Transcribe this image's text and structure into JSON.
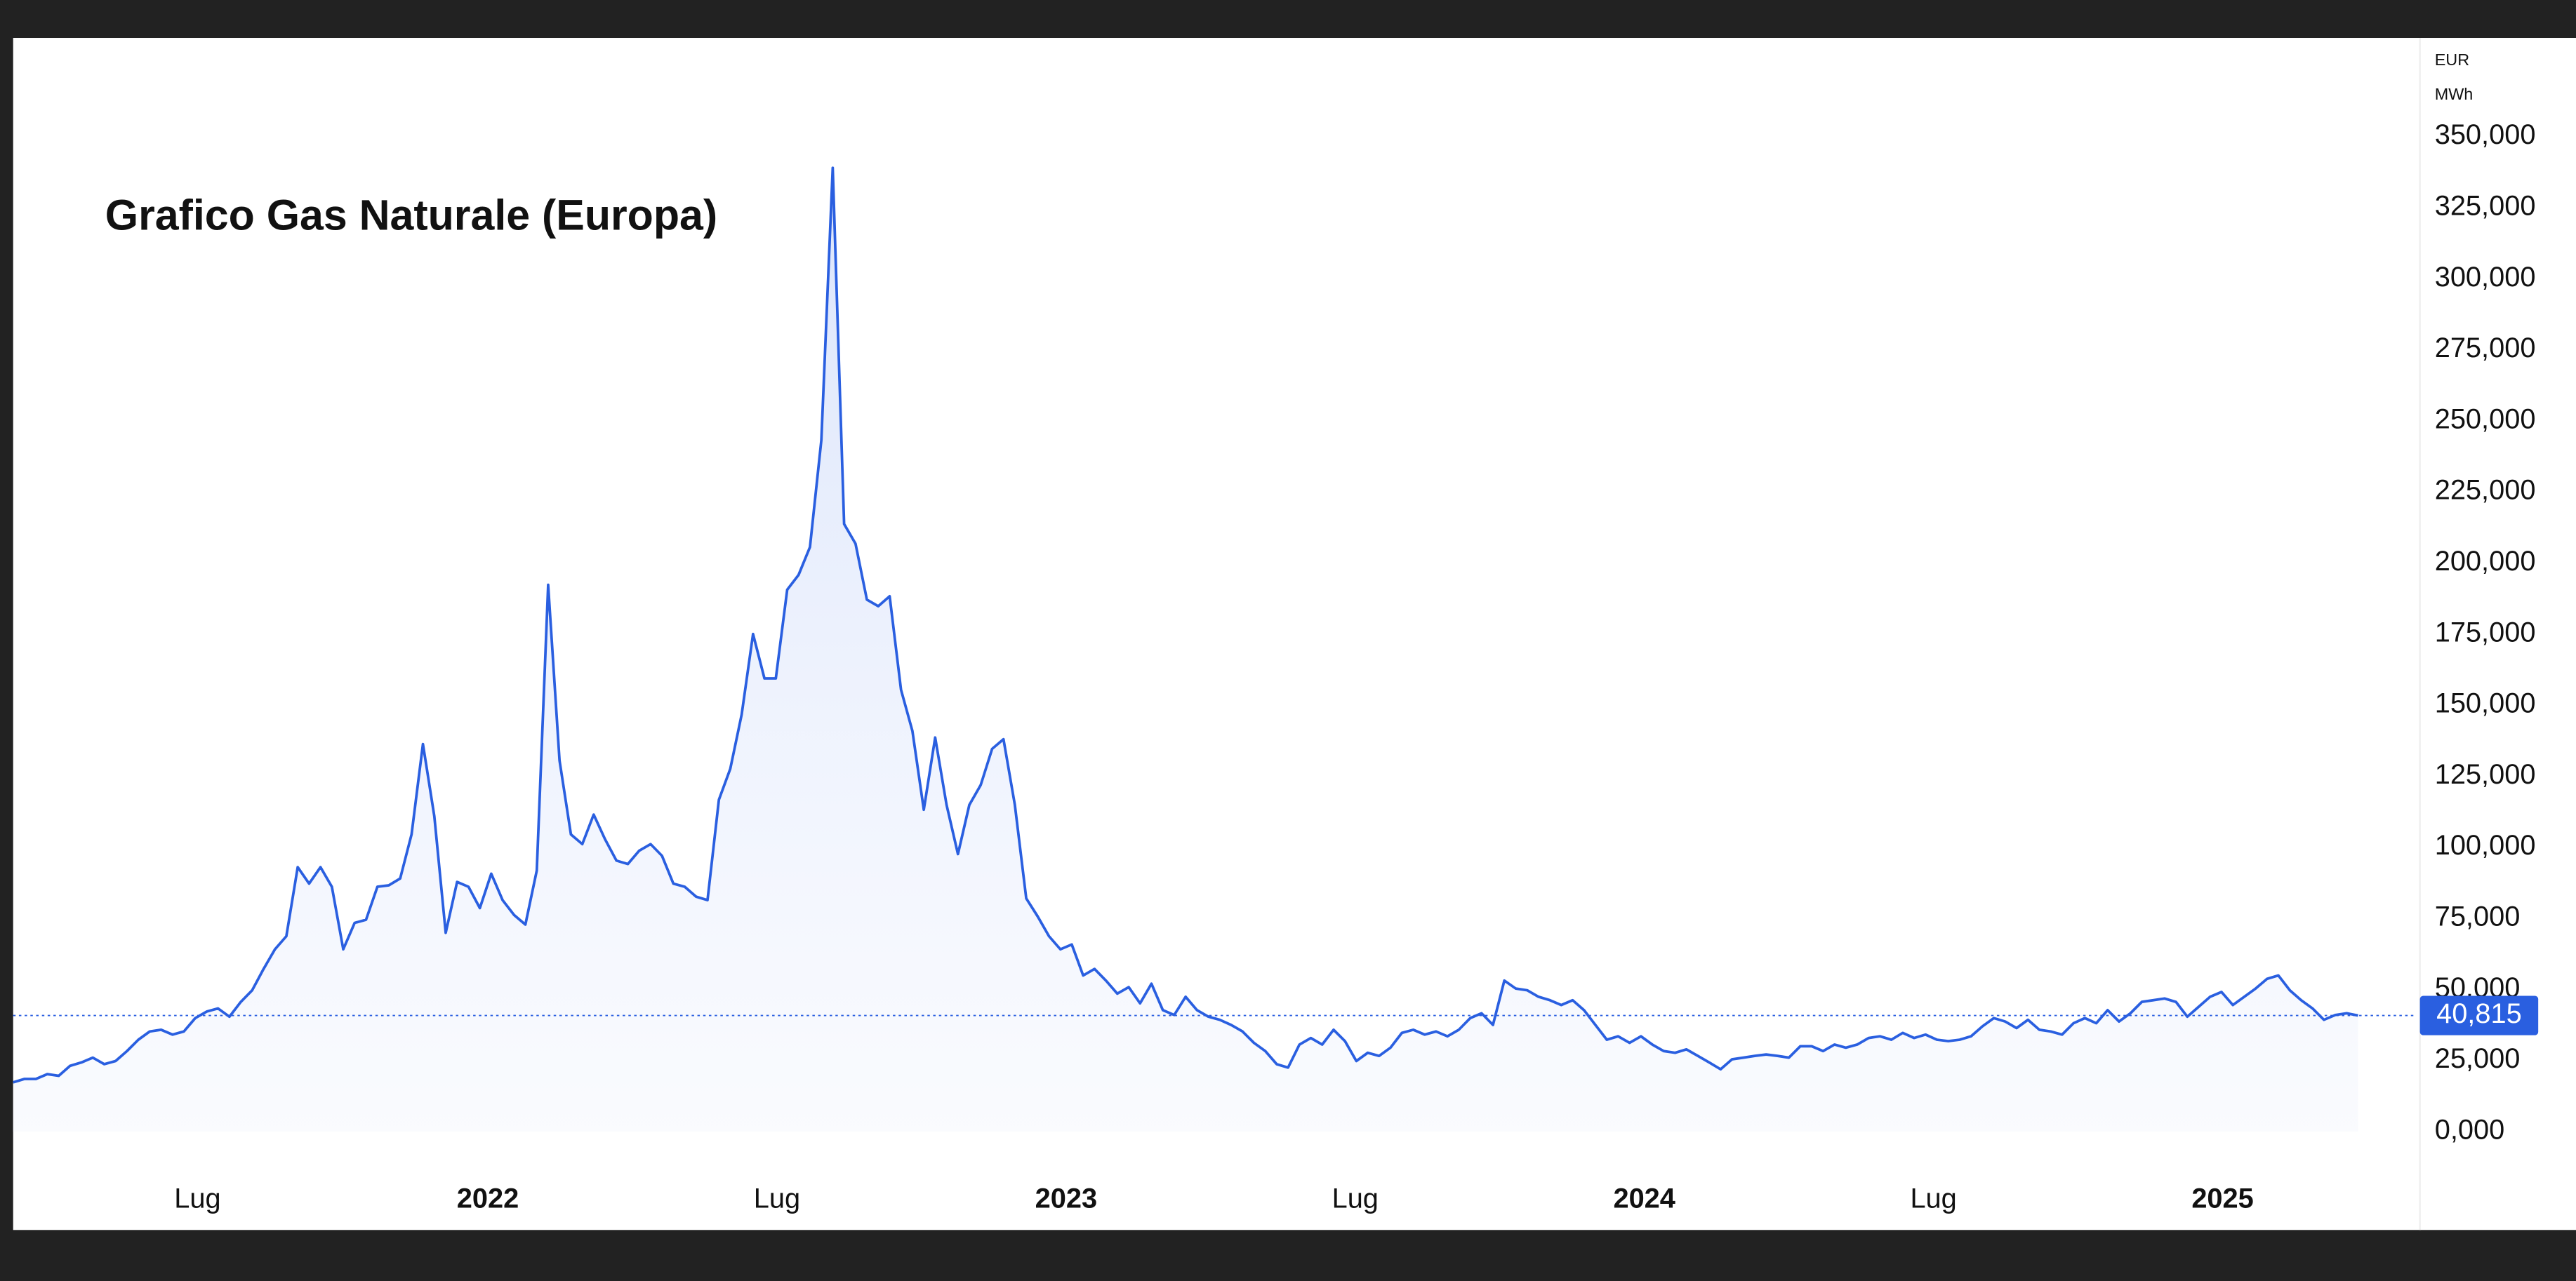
{
  "chart_data": {
    "type": "line",
    "title": "Grafico Gas Naturale (Europa)",
    "unit_labels": [
      "EUR",
      "MWh"
    ],
    "series": [
      {
        "name": "Gas Naturale (Europa)",
        "color": "#2a5fe0",
        "values": [
          17.3,
          18.5,
          18.5,
          20.2,
          19.6,
          23.1,
          24.3,
          26.0,
          23.7,
          24.8,
          28.3,
          32.3,
          35.2,
          35.8,
          34.1,
          35.2,
          39.9,
          42.2,
          43.3,
          40.4,
          45.6,
          49.7,
          57.2,
          64.1,
          68.7,
          93.0,
          87.2,
          93.0,
          86.1,
          64.1,
          73.4,
          74.5,
          86.1,
          86.6,
          89.0,
          104.5,
          136.3,
          110.9,
          69.9,
          87.8,
          86.1,
          78.6,
          90.7,
          81.4,
          76.2,
          72.8,
          91.8,
          192.3,
          130.5,
          104.5,
          101.1,
          111.5,
          102.8,
          95.3,
          94.1,
          98.8,
          101.1,
          97.0,
          87.2,
          86.1,
          82.6,
          81.4,
          116.7,
          127.6,
          146.7,
          175.0,
          159.4,
          159.4,
          190.6,
          195.8,
          205.6,
          243.2,
          339.0,
          213.7,
          206.8,
          187.1,
          184.8,
          188.3,
          155.4,
          140.9,
          113.2,
          138.6,
          114.9,
          97.6,
          114.9,
          121.9,
          134.6,
          138.0,
          114.9,
          82.0,
          75.7,
          68.7,
          64.1,
          65.8,
          54.9,
          57.2,
          53.1,
          48.5,
          50.8,
          45.1,
          52.0,
          42.7,
          41.0,
          47.4,
          42.7,
          40.4,
          39.3,
          37.5,
          35.2,
          31.2,
          28.3,
          23.7,
          22.5,
          30.6,
          32.9,
          30.6,
          35.8,
          31.8,
          24.8,
          27.7,
          26.6,
          29.5,
          34.7,
          35.8,
          34.1,
          35.2,
          33.5,
          35.8,
          39.9,
          41.6,
          37.5,
          53.1,
          50.3,
          49.7,
          47.4,
          46.2,
          44.5,
          46.2,
          42.7,
          37.5,
          32.3,
          33.5,
          31.2,
          33.5,
          30.6,
          28.3,
          27.7,
          28.9,
          26.6,
          24.3,
          21.9,
          25.4,
          26.0,
          26.6,
          27.1,
          26.6,
          26.0,
          30.0,
          30.0,
          28.3,
          30.6,
          29.5,
          30.6,
          32.9,
          33.5,
          32.3,
          34.7,
          32.9,
          34.1,
          32.3,
          31.8,
          32.3,
          33.5,
          37.0,
          39.9,
          38.7,
          36.4,
          39.3,
          35.8,
          35.2,
          34.1,
          38.1,
          39.9,
          38.1,
          42.7,
          38.7,
          41.6,
          45.6,
          46.2,
          46.8,
          45.6,
          40.4,
          43.9,
          47.4,
          49.1,
          44.5,
          47.4,
          50.3,
          53.7,
          54.9,
          49.7,
          46.2,
          43.3,
          39.3,
          41.0,
          41.6,
          40.815
        ]
      }
    ],
    "last_value_label": "40,815",
    "xlim": [
      0,
      211
    ],
    "xticks": [
      {
        "value": 16.2,
        "label": "Lug"
      },
      {
        "value": 41.7,
        "label": "2022"
      },
      {
        "value": 67.1,
        "label": "Lug"
      },
      {
        "value": 92.5,
        "label": "2023"
      },
      {
        "value": 117.9,
        "label": "Lug"
      },
      {
        "value": 143.3,
        "label": "2024"
      },
      {
        "value": 168.7,
        "label": "Lug"
      },
      {
        "value": 194.1,
        "label": "2025"
      }
    ],
    "ylim": [
      -12.1,
      384.7
    ],
    "yticks": [
      {
        "value": 0,
        "label": "0,000"
      },
      {
        "value": 25,
        "label": "25,000"
      },
      {
        "value": 50,
        "label": "50,000"
      },
      {
        "value": 75,
        "label": "75,000"
      },
      {
        "value": 100,
        "label": "100,000"
      },
      {
        "value": 125,
        "label": "125,000"
      },
      {
        "value": 150,
        "label": "150,000"
      },
      {
        "value": 175,
        "label": "175,000"
      },
      {
        "value": 200,
        "label": "200,000"
      },
      {
        "value": 225,
        "label": "225,000"
      },
      {
        "value": 250,
        "label": "250,000"
      },
      {
        "value": 275,
        "label": "275,000"
      },
      {
        "value": 300,
        "label": "300,000"
      },
      {
        "value": 325,
        "label": "325,000"
      },
      {
        "value": 350,
        "label": "350,000"
      }
    ],
    "grid": false
  }
}
